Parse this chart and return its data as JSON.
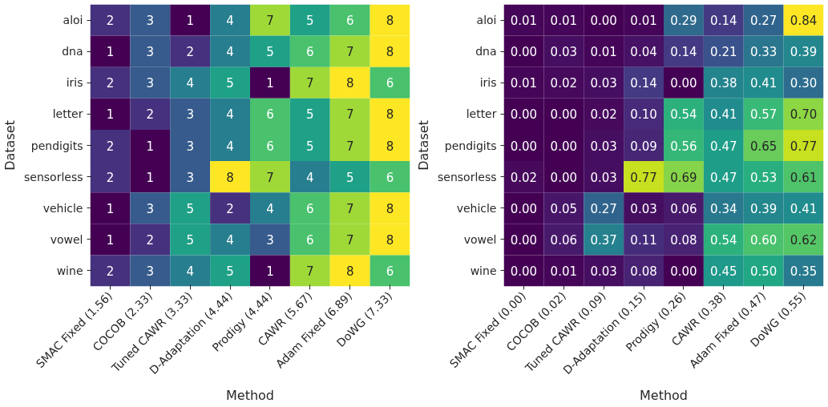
{
  "chart_data": [
    {
      "type": "heatmap",
      "xlabel": "Method",
      "ylabel": "Dataset",
      "data_labels": true,
      "categories": [
        "SMAC Fixed (1.56)",
        "COCOB (2.33)",
        "Tuned CAWR (3.33)",
        "D-Adaptation (4.44)",
        "Prodigy (4.44)",
        "CAWR (5.67)",
        "Adam Fixed (6.89)",
        "DoWG (7.33)"
      ],
      "y_categories": [
        "aloi",
        "dna",
        "iris",
        "letter",
        "pendigits",
        "sensorless",
        "vehicle",
        "vowel",
        "wine"
      ],
      "cells": [
        [
          2,
          3,
          1,
          4,
          7,
          5,
          6,
          8
        ],
        [
          1,
          3,
          2,
          4,
          5,
          6,
          7,
          8
        ],
        [
          2,
          3,
          4,
          5,
          1,
          7,
          8,
          6
        ],
        [
          1,
          2,
          3,
          4,
          6,
          5,
          7,
          8
        ],
        [
          2,
          1,
          3,
          4,
          6,
          5,
          7,
          8
        ],
        [
          2,
          1,
          3,
          8,
          7,
          4,
          5,
          6
        ],
        [
          1,
          3,
          5,
          2,
          4,
          6,
          7,
          8
        ],
        [
          1,
          2,
          5,
          4,
          3,
          6,
          7,
          8
        ],
        [
          2,
          3,
          4,
          5,
          1,
          7,
          8,
          6
        ]
      ]
    },
    {
      "type": "heatmap",
      "xlabel": "Method",
      "ylabel": "Dataset",
      "categories": [
        "SMAC Fixed (0.00)",
        "COCOB (0.02)",
        "Tuned CAWR (0.09)",
        "D-Adaptation (0.15)",
        "Prodigy (0.26)",
        "CAWR (0.38)",
        "Adam Fixed (0.47)",
        "DoWG (0.55)"
      ],
      "y_categories": [
        "aloi",
        "dna",
        "iris",
        "letter",
        "pendigits",
        "sensorless",
        "vehicle",
        "vowel",
        "wine"
      ],
      "cells": [
        [
          0.01,
          0.01,
          0.0,
          0.01,
          0.29,
          0.14,
          0.27,
          0.84
        ],
        [
          0.0,
          0.03,
          0.01,
          0.04,
          0.14,
          0.21,
          0.33,
          0.39
        ],
        [
          0.01,
          0.02,
          0.03,
          0.14,
          0.0,
          0.38,
          0.41,
          0.3
        ],
        [
          0.0,
          0.0,
          0.02,
          0.1,
          0.54,
          0.41,
          0.57,
          0.7
        ],
        [
          0.0,
          0.0,
          0.03,
          0.09,
          0.56,
          0.47,
          0.65,
          0.77
        ],
        [
          0.02,
          0.0,
          0.03,
          0.77,
          0.69,
          0.47,
          0.53,
          0.61
        ],
        [
          0.0,
          0.05,
          0.27,
          0.03,
          0.06,
          0.34,
          0.39,
          0.41
        ],
        [
          0.0,
          0.06,
          0.37,
          0.11,
          0.08,
          0.54,
          0.6,
          0.62
        ],
        [
          0.0,
          0.01,
          0.03,
          0.08,
          0.0,
          0.45,
          0.5,
          0.35
        ]
      ],
      "cell_labels": [
        [
          "0.01",
          "0.01",
          "0.00",
          "0.01",
          "0.29",
          "0.14",
          "0.27",
          "0.84"
        ],
        [
          "0.00",
          "0.03",
          "0.01",
          "0.04",
          "0.14",
          "0.21",
          "0.33",
          "0.39"
        ],
        [
          "0.01",
          "0.02",
          "0.03",
          "0.14",
          "0.00",
          "0.38",
          "0.41",
          "0.30"
        ],
        [
          "0.00",
          "0.00",
          "0.02",
          "0.10",
          "0.54",
          "0.41",
          "0.57",
          "0.70"
        ],
        [
          "0.00",
          "0.00",
          "0.03",
          "0.09",
          "0.56",
          "0.47",
          "0.65",
          "0.77"
        ],
        [
          "0.02",
          "0.00",
          "0.03",
          "0.77",
          "0.69",
          "0.47",
          "0.53",
          "0.61"
        ],
        [
          "0.00",
          "0.05",
          "0.27",
          "0.03",
          "0.06",
          "0.34",
          "0.39",
          "0.41"
        ],
        [
          "0.00",
          "0.06",
          "0.37",
          "0.11",
          "0.08",
          "0.54",
          "0.60",
          "0.62"
        ],
        [
          "0.00",
          "0.01",
          "0.03",
          "0.08",
          "0.00",
          "0.45",
          "0.50",
          "0.35"
        ]
      ]
    }
  ]
}
